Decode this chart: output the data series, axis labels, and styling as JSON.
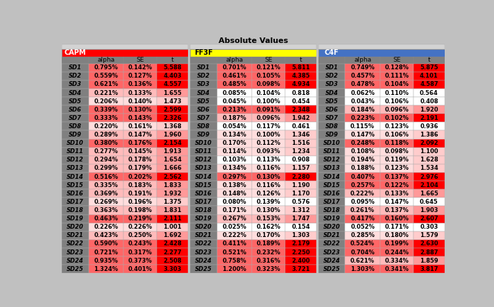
{
  "title": "Absolute Values",
  "sections": [
    {
      "header": "CAPM",
      "header_color": "#FF0000",
      "header_text_color": "#FFFFFF",
      "rows": [
        [
          "SD1",
          "0.795%",
          "0.142%",
          "5.588"
        ],
        [
          "SD2",
          "0.559%",
          "0.127%",
          "4.403"
        ],
        [
          "SD3",
          "0.621%",
          "0.136%",
          "4.557"
        ],
        [
          "SD4",
          "0.221%",
          "0.133%",
          "1.655"
        ],
        [
          "SD5",
          "0.206%",
          "0.140%",
          "1.473"
        ],
        [
          "SD6",
          "0.339%",
          "0.130%",
          "2.599"
        ],
        [
          "SD7",
          "0.333%",
          "0.143%",
          "2.326"
        ],
        [
          "SD8",
          "0.220%",
          "0.161%",
          "1.368"
        ],
        [
          "SD9",
          "0.289%",
          "0.147%",
          "1.960"
        ],
        [
          "SD10",
          "0.380%",
          "0.176%",
          "2.154"
        ],
        [
          "SD11",
          "0.277%",
          "0.145%",
          "1.913"
        ],
        [
          "SD12",
          "0.294%",
          "0.178%",
          "1.654"
        ],
        [
          "SD13",
          "0.299%",
          "0.179%",
          "1.666"
        ],
        [
          "SD14",
          "0.516%",
          "0.202%",
          "2.562"
        ],
        [
          "SD15",
          "0.335%",
          "0.183%",
          "1.833"
        ],
        [
          "SD16",
          "0.369%",
          "0.191%",
          "1.932"
        ],
        [
          "SD17",
          "0.269%",
          "0.196%",
          "1.375"
        ],
        [
          "SD18",
          "0.363%",
          "0.198%",
          "1.831"
        ],
        [
          "SD19",
          "0.463%",
          "0.219%",
          "2.111"
        ],
        [
          "SD20",
          "0.226%",
          "0.226%",
          "1.001"
        ],
        [
          "SD21",
          "0.423%",
          "0.250%",
          "1.692"
        ],
        [
          "SD22",
          "0.590%",
          "0.243%",
          "2.428"
        ],
        [
          "SD23",
          "0.721%",
          "0.317%",
          "2.277"
        ],
        [
          "SD24",
          "0.935%",
          "0.373%",
          "2.508"
        ],
        [
          "SD25",
          "1.324%",
          "0.401%",
          "3.303"
        ]
      ]
    },
    {
      "header": "FF3F",
      "header_color": "#FFFF00",
      "header_text_color": "#000000",
      "rows": [
        [
          "SD1",
          "0.701%",
          "0.121%",
          "5.811"
        ],
        [
          "SD2",
          "0.461%",
          "0.105%",
          "4.385"
        ],
        [
          "SD3",
          "0.485%",
          "0.098%",
          "4.934"
        ],
        [
          "SD4",
          "0.085%",
          "0.104%",
          "0.818"
        ],
        [
          "SD5",
          "0.045%",
          "0.100%",
          "0.454"
        ],
        [
          "SD6",
          "0.213%",
          "0.091%",
          "2.348"
        ],
        [
          "SD7",
          "0.187%",
          "0.096%",
          "1.942"
        ],
        [
          "SD8",
          "0.054%",
          "0.117%",
          "0.461"
        ],
        [
          "SD9",
          "0.134%",
          "0.100%",
          "1.346"
        ],
        [
          "SD10",
          "0.170%",
          "0.112%",
          "1.516"
        ],
        [
          "SD11",
          "0.114%",
          "0.093%",
          "1.234"
        ],
        [
          "SD12",
          "0.103%",
          "0.113%",
          "0.908"
        ],
        [
          "SD13",
          "0.134%",
          "0.116%",
          "1.157"
        ],
        [
          "SD14",
          "0.297%",
          "0.130%",
          "2.280"
        ],
        [
          "SD15",
          "0.138%",
          "0.116%",
          "1.190"
        ],
        [
          "SD16",
          "0.148%",
          "0.126%",
          "1.170"
        ],
        [
          "SD17",
          "0.080%",
          "0.139%",
          "0.576"
        ],
        [
          "SD18",
          "0.171%",
          "0.130%",
          "1.312"
        ],
        [
          "SD19",
          "0.267%",
          "0.153%",
          "1.747"
        ],
        [
          "SD20",
          "0.025%",
          "0.162%",
          "0.154"
        ],
        [
          "SD21",
          "0.222%",
          "0.170%",
          "1.303"
        ],
        [
          "SD22",
          "0.411%",
          "0.189%",
          "2.179"
        ],
        [
          "SD23",
          "0.521%",
          "0.232%",
          "2.250"
        ],
        [
          "SD24",
          "0.758%",
          "0.316%",
          "2.400"
        ],
        [
          "SD25",
          "1.200%",
          "0.323%",
          "3.721"
        ]
      ]
    },
    {
      "header": "C4F",
      "header_color": "#4472C4",
      "header_text_color": "#FFFFFF",
      "rows": [
        [
          "SD1",
          "0.749%",
          "0.128%",
          "5.875"
        ],
        [
          "SD2",
          "0.457%",
          "0.111%",
          "4.101"
        ],
        [
          "SD3",
          "0.478%",
          "0.104%",
          "4.587"
        ],
        [
          "SD4",
          "0.062%",
          "0.110%",
          "0.564"
        ],
        [
          "SD5",
          "0.043%",
          "0.106%",
          "0.408"
        ],
        [
          "SD6",
          "0.184%",
          "0.096%",
          "1.920"
        ],
        [
          "SD7",
          "0.223%",
          "0.102%",
          "2.191"
        ],
        [
          "SD8",
          "0.115%",
          "0.123%",
          "0.936"
        ],
        [
          "SD9",
          "0.147%",
          "0.106%",
          "1.386"
        ],
        [
          "SD10",
          "0.248%",
          "0.118%",
          "2.092"
        ],
        [
          "SD11",
          "0.108%",
          "0.098%",
          "1.100"
        ],
        [
          "SD12",
          "0.194%",
          "0.119%",
          "1.628"
        ],
        [
          "SD13",
          "0.188%",
          "0.123%",
          "1.534"
        ],
        [
          "SD14",
          "0.407%",
          "0.137%",
          "2.976"
        ],
        [
          "SD15",
          "0.257%",
          "0.122%",
          "2.104"
        ],
        [
          "SD16",
          "0.222%",
          "0.133%",
          "1.665"
        ],
        [
          "SD17",
          "0.095%",
          "0.147%",
          "0.645"
        ],
        [
          "SD18",
          "0.261%",
          "0.137%",
          "1.903"
        ],
        [
          "SD19",
          "0.417%",
          "0.160%",
          "2.607"
        ],
        [
          "SD20",
          "0.052%",
          "0.171%",
          "0.303"
        ],
        [
          "SD21",
          "0.285%",
          "0.180%",
          "1.579"
        ],
        [
          "SD22",
          "0.524%",
          "0.199%",
          "2.630"
        ],
        [
          "SD23",
          "0.704%",
          "0.244%",
          "2.887"
        ],
        [
          "SD24",
          "0.621%",
          "0.334%",
          "1.859"
        ],
        [
          "SD25",
          "1.303%",
          "0.341%",
          "3.817"
        ]
      ]
    }
  ],
  "col_headers": [
    "alpha",
    "SE",
    "t"
  ],
  "fig_bg": "#C0C0C0",
  "table_bg": "#FFFFFF",
  "gray_col": "#808080",
  "gray_col_text": "#000000",
  "col_header_bg": "#808080",
  "col_header_text": "#000000",
  "spacer_bg": "#D3D3D3",
  "t_high_thresh": 2.0,
  "t_mid_thresh": 1.65,
  "t_low_thresh": 1.0,
  "c_t_high": "#FF0000",
  "c_t_mid": "#FF9999",
  "c_t_low": "#FFCCCC",
  "c_t_none": "#FFFFFF",
  "c_alpha_high": "#FF6666",
  "c_alpha_mid": "#FFBBBB",
  "c_alpha_low": "#FFDDDD",
  "c_alpha_none": "#FFFFFF"
}
